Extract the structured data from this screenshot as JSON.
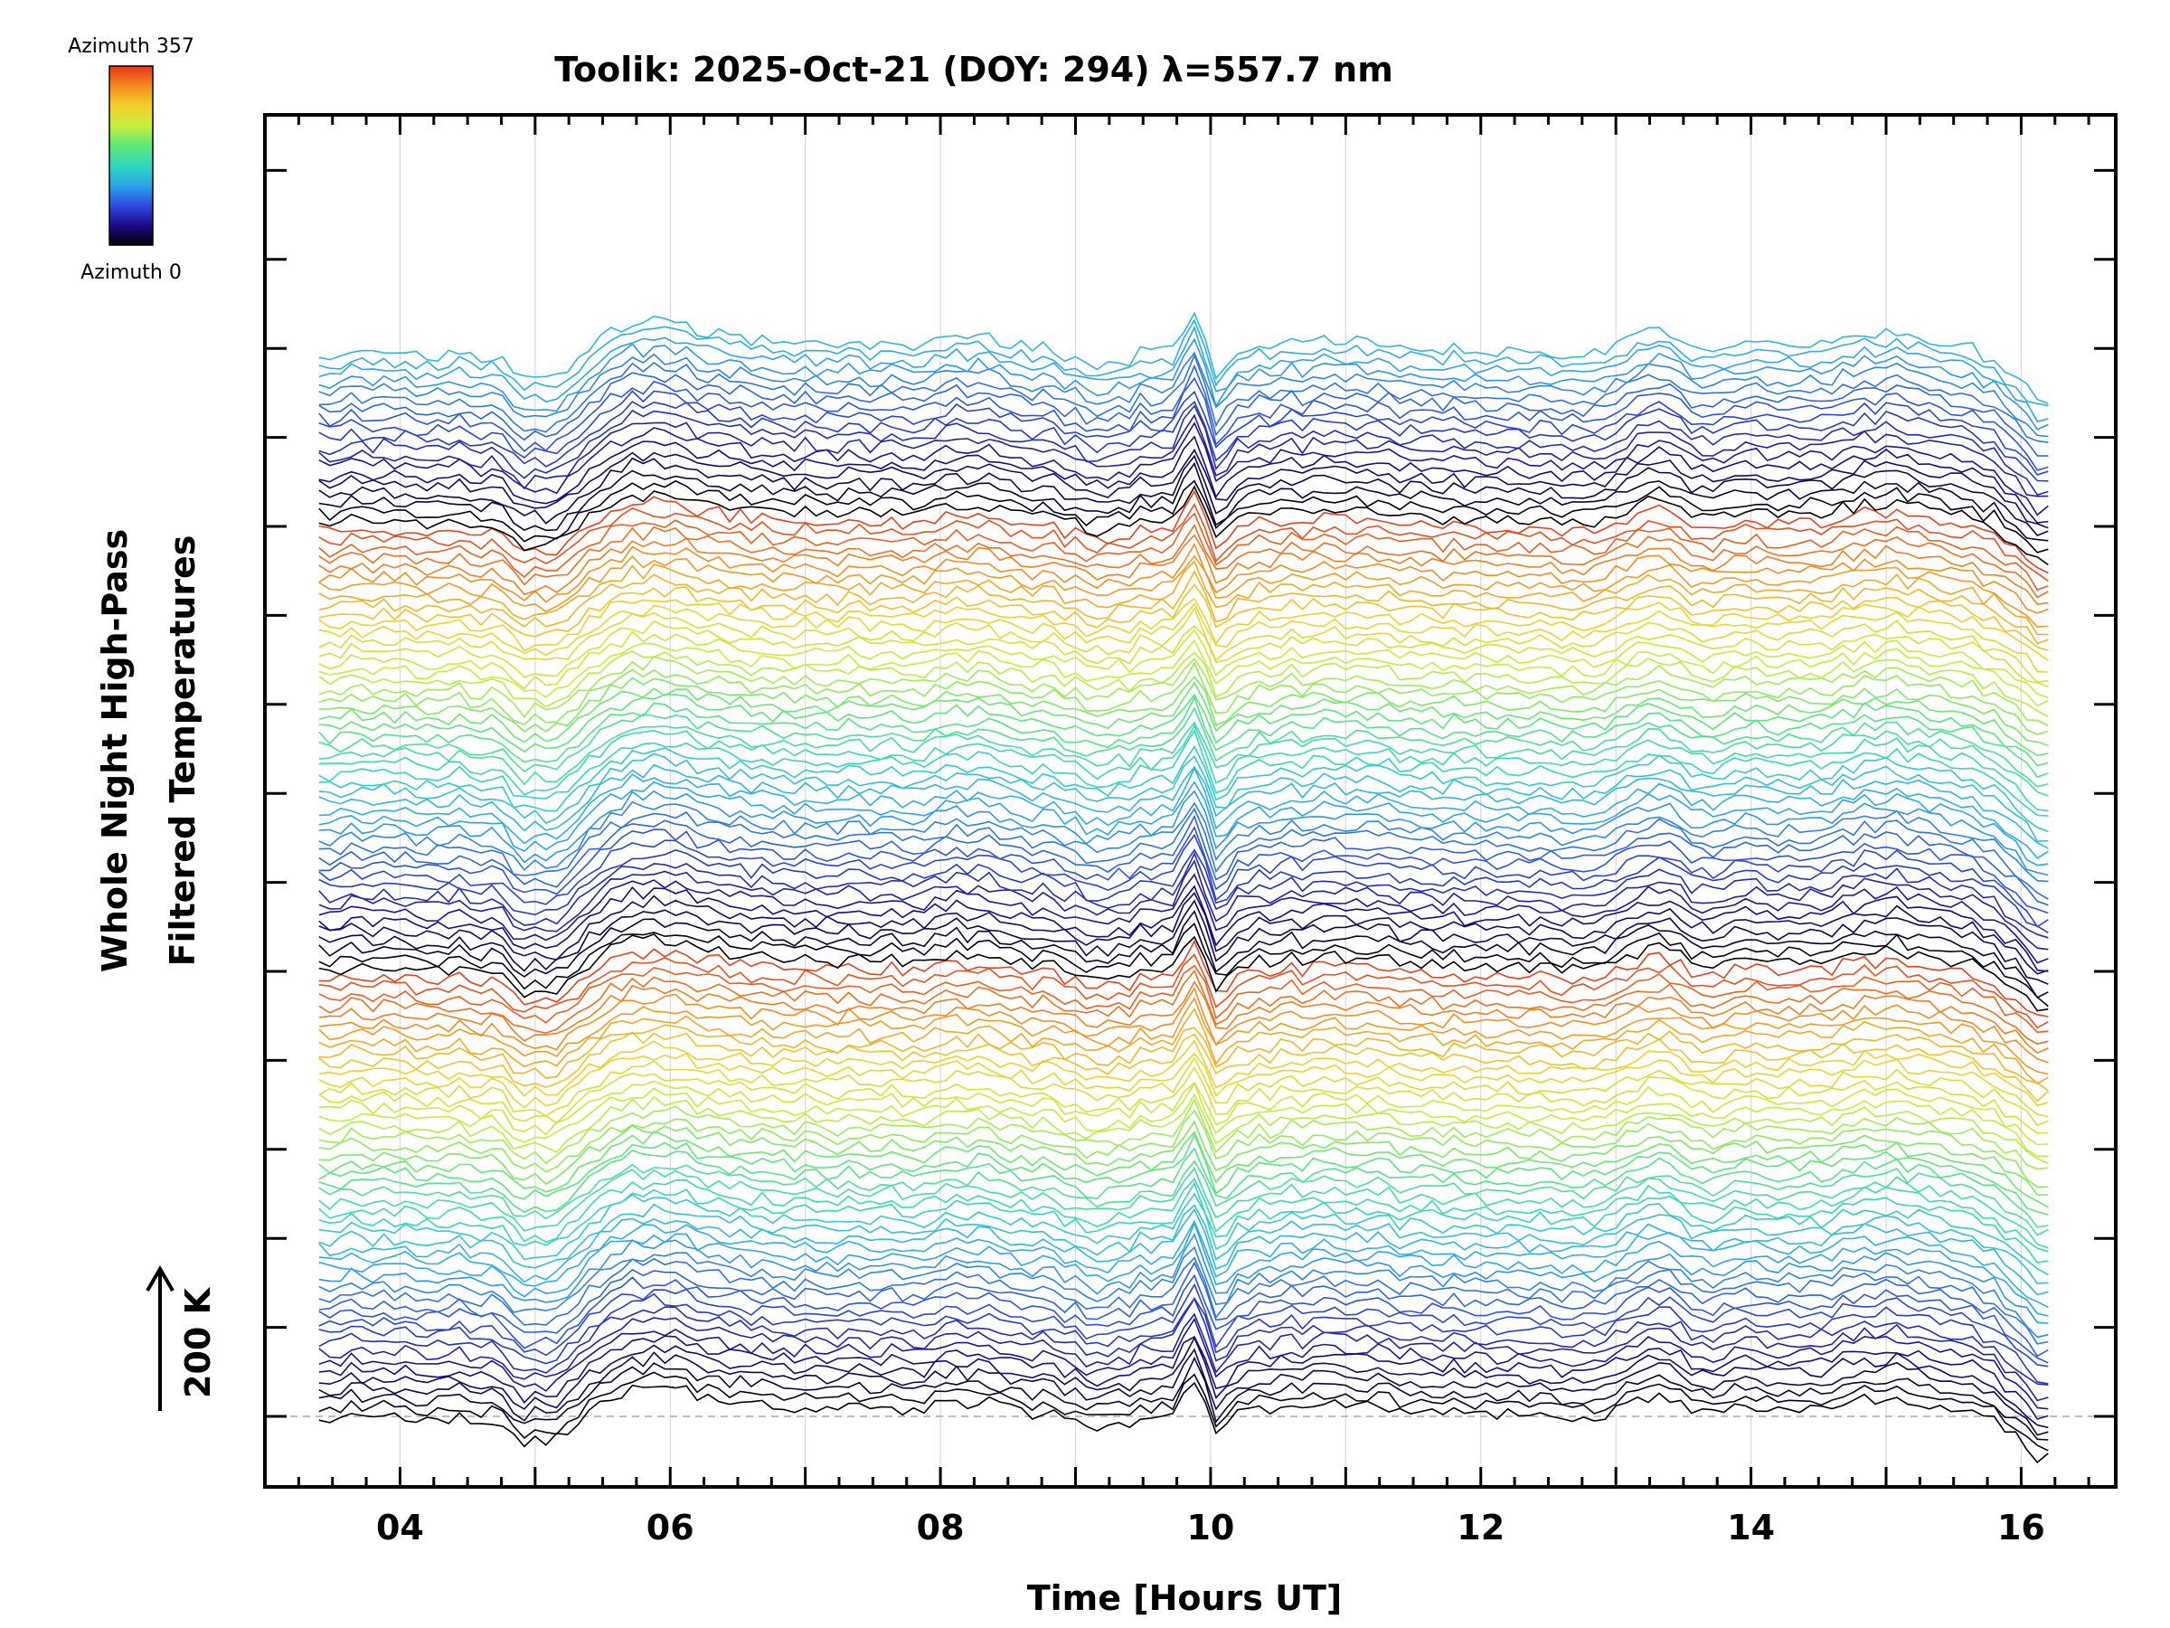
{
  "chart_data": {
    "type": "line",
    "title": "Toolik: 2025-Oct-21 (DOY: 294) λ=557.7 nm",
    "xlabel": "Time [Hours UT]",
    "ylabel_line1": "Whole Night High-Pass",
    "ylabel_line2": "Filtered Temperatures",
    "xlim": [
      3,
      16.7
    ],
    "x_major_ticks": [
      4,
      6,
      8,
      10,
      12,
      14,
      16
    ],
    "x_tick_labels": [
      "04",
      "06",
      "08",
      "10",
      "12",
      "14",
      "16"
    ],
    "x_start": 3.4,
    "x_end": 16.2,
    "num_traces": 115,
    "trace_offset_fraction": 0.0068,
    "scale_bar_label": "200 K",
    "colorbar_top_label": "Azimuth 357",
    "colorbar_bottom_label": "Azimuth 0",
    "colorbar_min": 0,
    "colorbar_max": 357,
    "colormap": [
      "#000000",
      "#1e0a8c",
      "#2f4be0",
      "#2aa6e8",
      "#30d8c0",
      "#5ee878",
      "#c8ee3c",
      "#f2d02a",
      "#f58a1e",
      "#e8361c"
    ],
    "grid": true,
    "zero_line_dashed": true,
    "frame_color": "#000000"
  }
}
